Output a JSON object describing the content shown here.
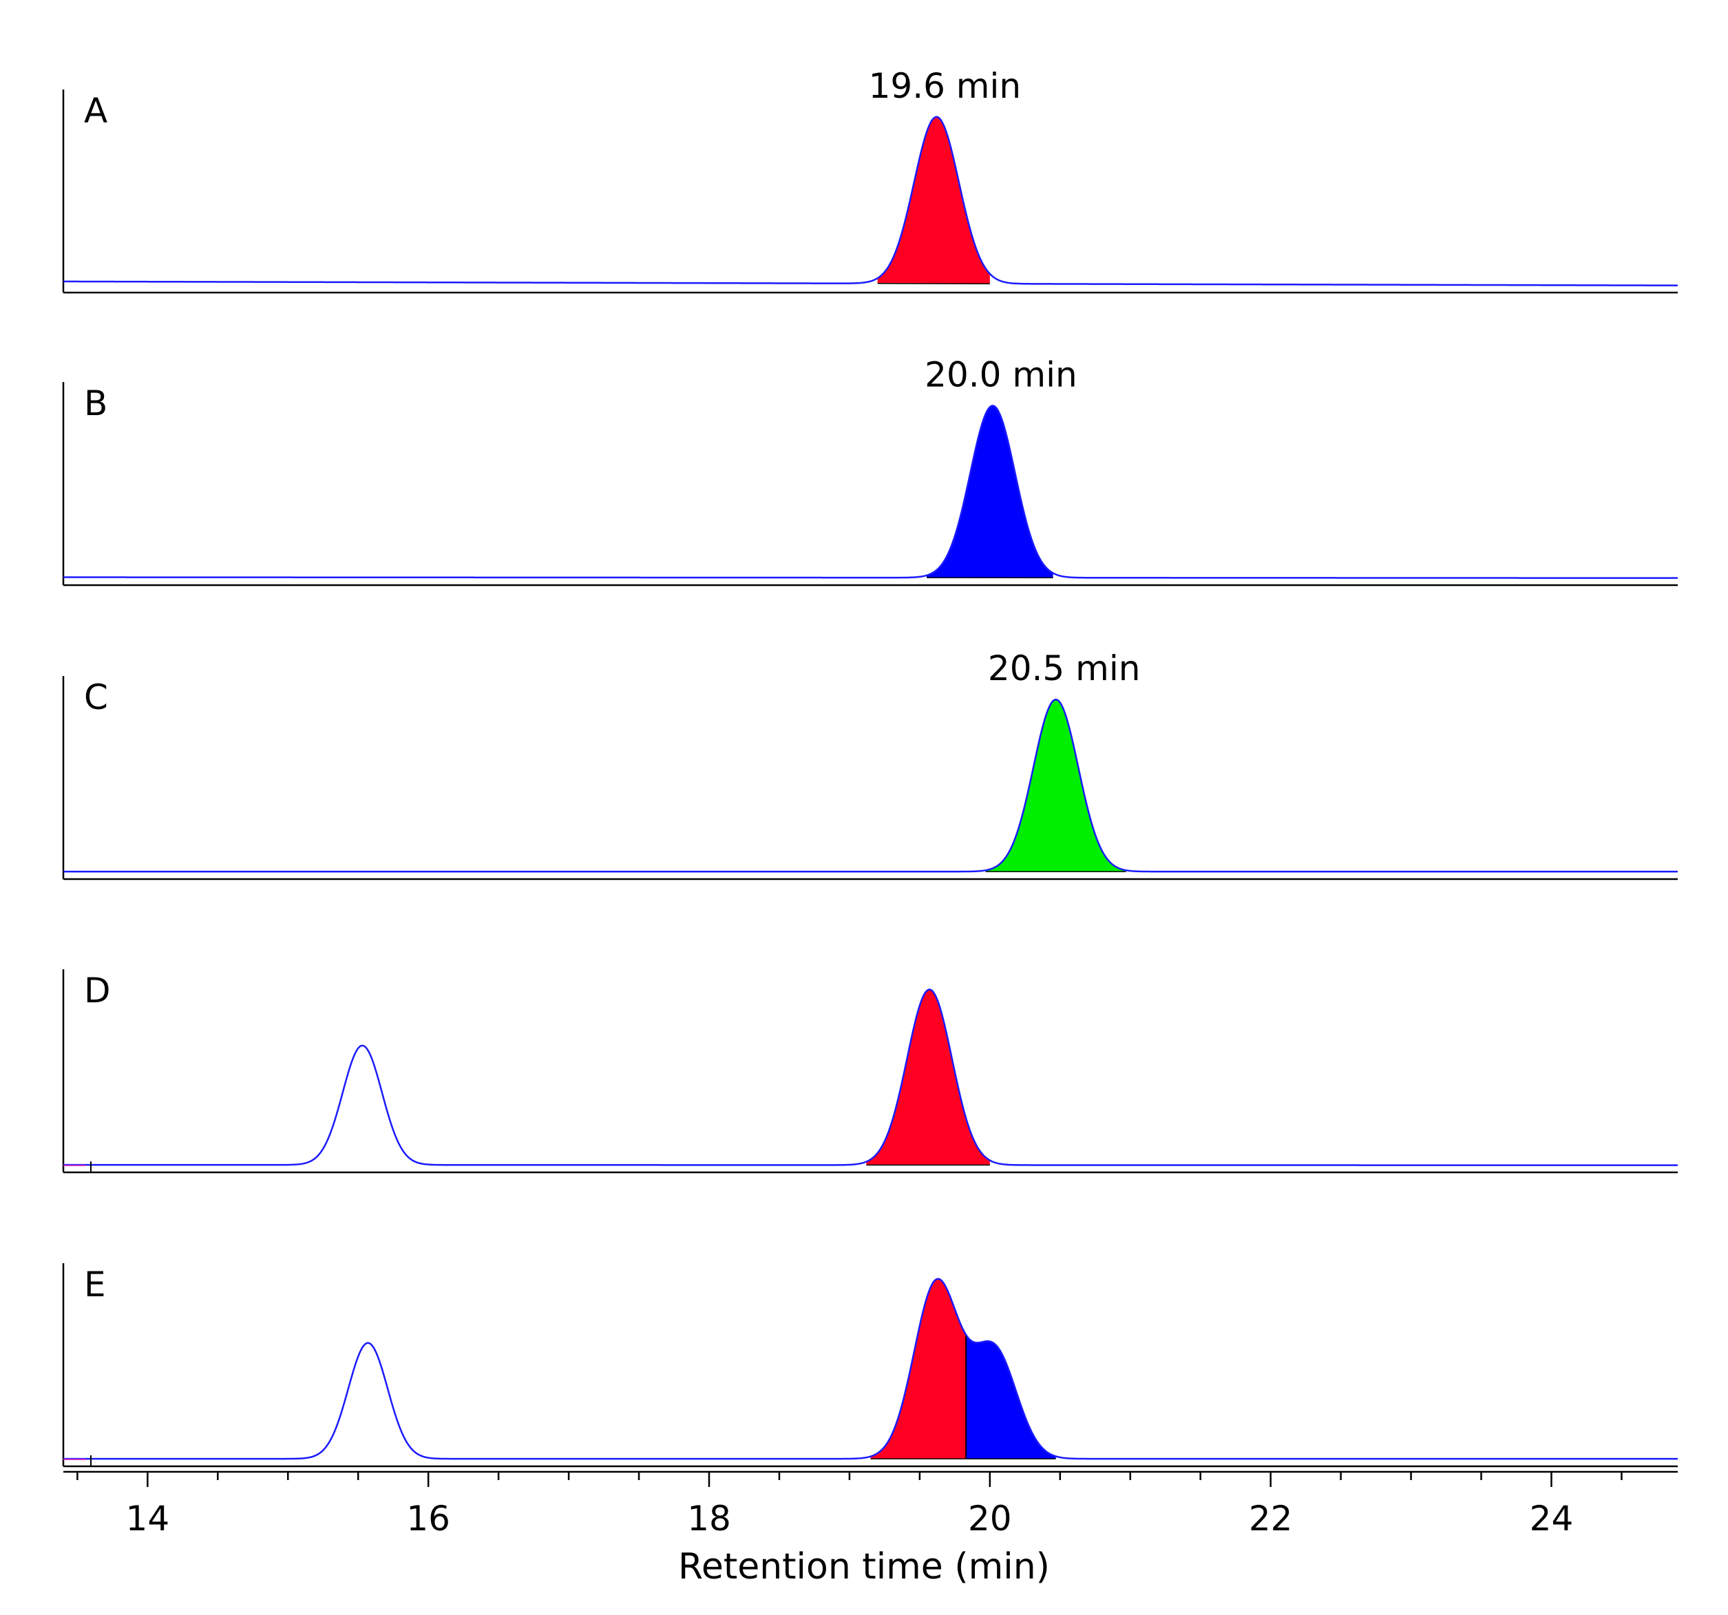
{
  "chart_data": {
    "type": "line",
    "title": "",
    "xlabel": "Retention time (min)",
    "ylabel": "",
    "xlim": [
      13.4,
      24.9
    ],
    "xticks": [
      14,
      16,
      18,
      20,
      22,
      24
    ],
    "grid": false,
    "legend": "none",
    "colors": {
      "trace": "#1a1aff",
      "red": "#ff0022",
      "blue": "#0000ff",
      "green": "#00ee00",
      "axis": "#000000"
    },
    "panels": [
      {
        "label": "A",
        "baseline_start": 0.14,
        "baseline_end": 0.04,
        "peaks": [
          {
            "rt": 19.62,
            "height": 0.95,
            "sigma": 0.16,
            "fill": "red",
            "fill_from": 19.2,
            "fill_to": 20.0,
            "annotation": "19.6 min"
          }
        ]
      },
      {
        "label": "B",
        "baseline_start": 0.06,
        "baseline_end": 0.04,
        "peaks": [
          {
            "rt": 20.02,
            "height": 0.98,
            "sigma": 0.16,
            "fill": "blue",
            "fill_from": 19.55,
            "fill_to": 20.45,
            "annotation": "20.0 min"
          }
        ]
      },
      {
        "label": "C",
        "baseline_start": 0.05,
        "baseline_end": 0.05,
        "peaks": [
          {
            "rt": 20.47,
            "height": 0.98,
            "sigma": 0.16,
            "fill": "green",
            "fill_from": 19.97,
            "fill_to": 20.97,
            "annotation": "20.5 min"
          }
        ]
      },
      {
        "label": "D",
        "baseline_start": 0.05,
        "baseline_end": 0.04,
        "peaks": [
          {
            "rt": 15.53,
            "height": 0.68,
            "sigma": 0.14
          },
          {
            "rt": 19.57,
            "height": 1.0,
            "sigma": 0.16,
            "fill": "red",
            "fill_from": 19.12,
            "fill_to": 20.0
          }
        ]
      },
      {
        "label": "E",
        "baseline_start": 0.05,
        "baseline_end": 0.05,
        "peaks": [
          {
            "rt": 15.57,
            "height": 0.66,
            "sigma": 0.14
          },
          {
            "rt": 19.62,
            "height": 1.0,
            "sigma": 0.16,
            "fill": "red",
            "fill_from": 19.15,
            "fill_to": 19.83
          },
          {
            "rt": 20.03,
            "height": 0.62,
            "sigma": 0.16,
            "fill": "blue",
            "fill_from": 19.83,
            "fill_to": 20.47
          }
        ]
      }
    ]
  }
}
